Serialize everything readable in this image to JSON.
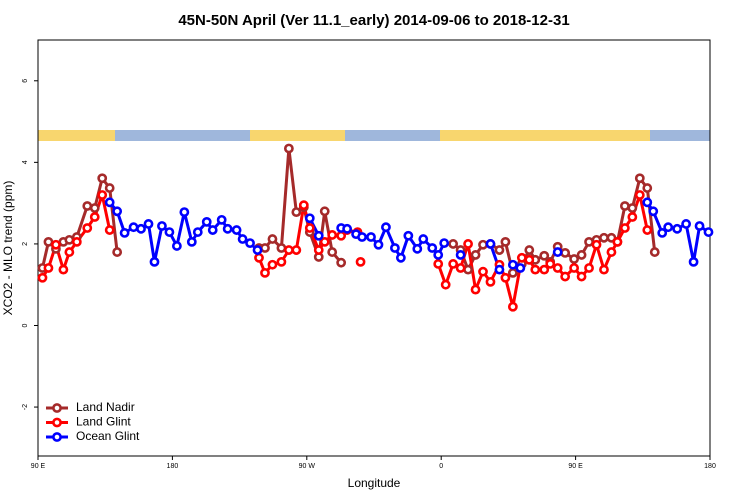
{
  "chart_data": {
    "type": "line",
    "title": "45N-50N April (Ver 11.1_early)   2014-09-06 to 2018-12-31",
    "x_label": "Longitude",
    "y_label": "XCO2 - MLO trend (ppm)",
    "xlim": [
      90,
      540
    ],
    "xticks": [
      {
        "value": 90,
        "label": "90 E"
      },
      180,
      {
        "value": 270,
        "label": "90 W"
      },
      {
        "value": 360,
        "label": "0"
      },
      {
        "value": 450,
        "label": "90 E"
      },
      {
        "value": 540,
        "label": "180"
      }
    ],
    "ylim": [
      -3.2,
      7
    ],
    "yticks": [
      -2,
      0,
      2,
      4,
      6
    ],
    "legend": "bottom-left",
    "series": [
      {
        "name": "Land Nadir",
        "color": "#a52a2a",
        "x": [
          93,
          97,
          102,
          107,
          111,
          116,
          123,
          128,
          133,
          138,
          143,
          null,
          238,
          242,
          247,
          253,
          258,
          263,
          268,
          272,
          278,
          282,
          287,
          293,
          null,
          368,
          373,
          378,
          383,
          388,
          393,
          399,
          403,
          408,
          414,
          419,
          423,
          429,
          433,
          438,
          443,
          449,
          454,
          459,
          464,
          469,
          474,
          478,
          483,
          488,
          493,
          498,
          503
        ],
        "values": [
          1.41,
          2.05,
          1.88,
          2.05,
          2.1,
          2.17,
          2.93,
          2.88,
          3.61,
          3.37,
          1.8,
          null,
          1.9,
          1.9,
          2.12,
          1.9,
          4.34,
          2.78,
          2.9,
          2.29,
          1.68,
          2.8,
          1.8,
          1.54,
          null,
          2.0,
          1.85,
          1.37,
          1.73,
          1.98,
          2.0,
          1.85,
          2.05,
          1.29,
          1.51,
          1.85,
          1.61,
          1.71,
          1.56,
          1.93,
          1.78,
          1.63,
          1.73,
          2.05,
          2.1,
          2.15,
          2.15,
          2.05,
          2.93,
          2.88,
          3.61,
          3.37,
          1.8
        ]
      },
      {
        "name": "Land Glint",
        "color": "#ff0000",
        "x": [
          93,
          97,
          102,
          107,
          111,
          116,
          123,
          128,
          133,
          138,
          null,
          238,
          242,
          247,
          253,
          258,
          263,
          268,
          272,
          278,
          282,
          287,
          293,
          297,
          304,
          null,
          306,
          null,
          358,
          363,
          368,
          373,
          378,
          383,
          388,
          393,
          399,
          403,
          408,
          414,
          419,
          423,
          429,
          433,
          438,
          443,
          449,
          454,
          459,
          464,
          469,
          474,
          478,
          483,
          488,
          493,
          498
        ],
        "values": [
          1.17,
          1.41,
          1.98,
          1.37,
          1.8,
          2.05,
          2.39,
          2.66,
          3.2,
          2.34,
          null,
          1.66,
          1.29,
          1.49,
          1.56,
          1.85,
          1.85,
          2.95,
          2.39,
          1.85,
          2.05,
          2.22,
          2.2,
          2.34,
          2.29,
          null,
          1.56,
          null,
          1.51,
          1.0,
          1.51,
          1.41,
          2.0,
          0.88,
          1.32,
          1.07,
          1.49,
          1.17,
          0.46,
          1.66,
          1.61,
          1.37,
          1.37,
          1.51,
          1.41,
          1.2,
          1.41,
          1.2,
          1.41,
          1.98,
          1.37,
          1.8,
          2.05,
          2.39,
          2.66,
          3.2,
          2.34
        ]
      },
      {
        "name": "Ocean Glint",
        "color": "#0000ff",
        "x": [
          138,
          143,
          148,
          154,
          159,
          164,
          168,
          173,
          178,
          183,
          188,
          193,
          197,
          203,
          207,
          213,
          217,
          223,
          227,
          232,
          237,
          null,
          272,
          278,
          null,
          293,
          297,
          303,
          307,
          313,
          318,
          323,
          329,
          333,
          338,
          344,
          348,
          354,
          358,
          362,
          null,
          373,
          null,
          393,
          399,
          null,
          408,
          413,
          null,
          438,
          null,
          498,
          502,
          508,
          512,
          518,
          524,
          529,
          533,
          539
        ],
        "values": [
          3.02,
          2.8,
          2.27,
          2.41,
          2.37,
          2.49,
          1.56,
          2.44,
          2.29,
          1.95,
          2.78,
          2.05,
          2.29,
          2.54,
          2.34,
          2.59,
          2.37,
          2.34,
          2.12,
          2.02,
          1.85,
          null,
          2.63,
          2.2,
          null,
          2.39,
          2.37,
          2.24,
          2.17,
          2.17,
          1.98,
          2.41,
          1.9,
          1.66,
          2.2,
          1.88,
          2.12,
          1.9,
          1.73,
          2.02,
          null,
          1.73,
          null,
          2.0,
          1.37,
          null,
          1.49,
          1.41,
          null,
          1.8,
          null,
          3.02,
          2.8,
          2.27,
          2.41,
          2.37,
          2.49,
          1.56,
          2.44,
          2.29
        ]
      }
    ]
  }
}
